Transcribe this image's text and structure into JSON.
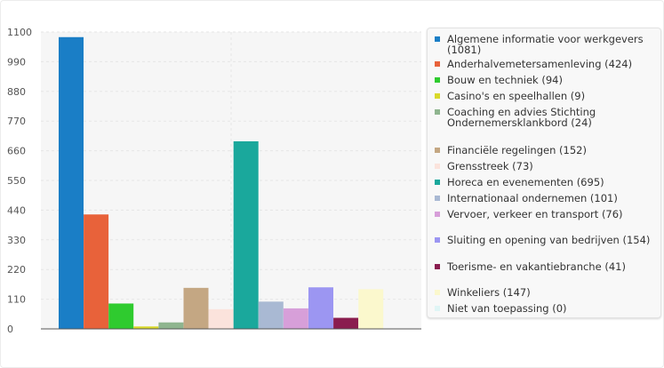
{
  "chart_data": {
    "type": "bar",
    "title": "",
    "xlabel": "",
    "ylabel": "",
    "ylim": [
      0,
      1100
    ],
    "yticks": [
      0,
      110,
      220,
      330,
      440,
      550,
      660,
      770,
      880,
      990,
      1100
    ],
    "ytick_labels": [
      "0",
      "110",
      "220",
      "330",
      "440",
      "550",
      "660",
      "770",
      "880",
      "990",
      "1100"
    ],
    "grid": true,
    "legend_position": "right",
    "categories": [
      "Algemene informatie voor werkgevers",
      "Anderhalvemetersamenleving",
      "Bouw en techniek",
      "Casino's en speelhallen",
      "Coaching en advies Stichting Ondernemersklankbord",
      "Financiële regelingen",
      "Grensstreek",
      "Horeca en evenementen",
      "Internationaal ondernemen",
      "Vervoer, verkeer en transport",
      "Sluiting en opening van bedrijven",
      "Toerisme- en vakantiebranche",
      "Winkeliers",
      "Niet van toepassing"
    ],
    "values": [
      1081,
      424,
      94,
      9,
      24,
      152,
      73,
      695,
      101,
      76,
      154,
      41,
      147,
      0
    ],
    "colors": [
      "#1a7ec6",
      "#e8623a",
      "#2fcb2f",
      "#d9d92a",
      "#8fb58f",
      "#c4a783",
      "#fbe3dc",
      "#1aa89c",
      "#a9b9d3",
      "#d79fd9",
      "#9c96f2",
      "#8a1d4f",
      "#fbf8cd",
      "#dff5f5"
    ],
    "legend": [
      "Algemene informatie voor werkgevers (1081)",
      "Anderhalvemetersamenleving (424)",
      "Bouw en techniek (94)",
      "Casino's en speelhallen (9)",
      "Coaching en advies Stichting Ondernemersklankbord (24)",
      "Financiële regelingen (152)",
      "Grensstreek (73)",
      "Horeca en evenementen (695)",
      "Internationaal ondernemen (101)",
      "Vervoer, verkeer en transport (76)",
      "Sluiting en opening van bedrijven (154)",
      "Toerisme- en vakantiebranche (41)",
      "Winkeliers (147)",
      "Niet van toepassing (0)"
    ]
  }
}
